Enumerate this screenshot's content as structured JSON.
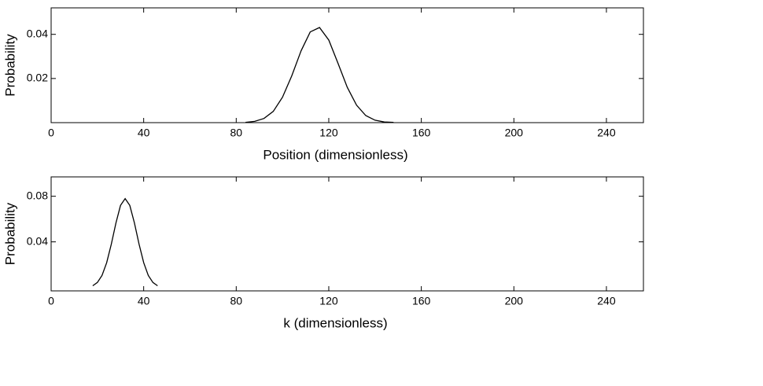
{
  "chart_data": [
    {
      "type": "line",
      "x_label": "Position (dimensionless)",
      "y_label": "Probability",
      "x": [
        84,
        88,
        92,
        96,
        100,
        104,
        108,
        112,
        116,
        120,
        124,
        128,
        132,
        136,
        140,
        144,
        148
      ],
      "series": [
        {
          "color": "#000000",
          "values": [
            0.00015,
            0.00058,
            0.0019,
            0.0051,
            0.0115,
            0.0212,
            0.0325,
            0.0411,
            0.0431,
            0.0374,
            0.0269,
            0.016,
            0.0079,
            0.0032,
            0.0011,
            0.0003,
            0.0001
          ]
        }
      ],
      "xlim": [
        0,
        256
      ],
      "xticks": [
        0,
        40,
        80,
        120,
        160,
        200,
        240
      ],
      "ylim": [
        0,
        0.052
      ],
      "yticks": [
        0.02,
        0.04
      ]
    },
    {
      "type": "line",
      "x_label": "k (dimensionless)",
      "y_label": "Probability",
      "x": [
        18,
        20,
        22,
        24,
        26,
        28,
        30,
        32,
        34,
        36,
        38,
        40,
        42,
        44,
        46
      ],
      "series": [
        {
          "color": "#000000",
          "values": [
            0.0015,
            0.0044,
            0.0106,
            0.0217,
            0.038,
            0.0566,
            0.072,
            0.078,
            0.072,
            0.0566,
            0.038,
            0.0217,
            0.0106,
            0.0044,
            0.0015
          ]
        }
      ],
      "xlim": [
        0,
        256
      ],
      "xticks": [
        0,
        40,
        80,
        120,
        160,
        200,
        240
      ],
      "ylim": [
        -0.003,
        0.097
      ],
      "yticks": [
        0.04,
        0.08
      ]
    }
  ]
}
